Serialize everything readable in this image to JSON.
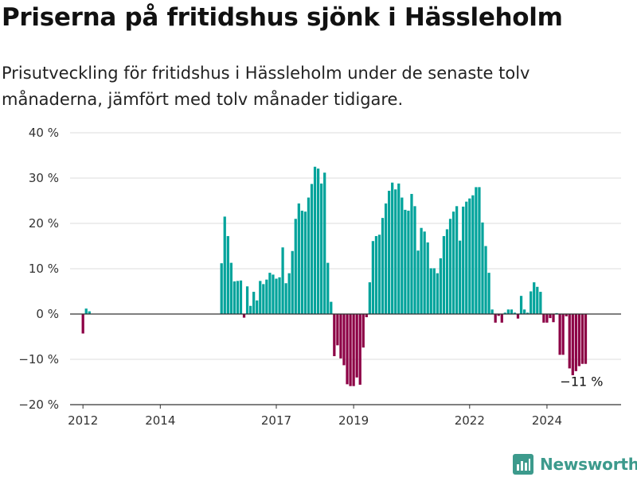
{
  "title": "Priserna på fritidshus sjönk i Hässleholm",
  "subtitle": "Prisutveckling för fritidshus i Hässleholm under de senaste tolv månaderna, jämfört med tolv månader tidigare.",
  "brand": {
    "name": "Newsworthy",
    "icon": "bar-chart-logo-icon",
    "color": "#3c9a8c"
  },
  "colors": {
    "positive": "#00a39b",
    "negative": "#8c0045",
    "grid": "#dcdcdc",
    "baseline": "#333333"
  },
  "chart_data": {
    "type": "bar",
    "x_unit": "month",
    "y_unit": "%",
    "ylim": [
      -20,
      40
    ],
    "y_ticks": [
      40,
      30,
      20,
      10,
      0,
      -10,
      -20
    ],
    "y_tick_labels": [
      "40 %",
      "30 %",
      "20 %",
      "10 %",
      "0 %",
      "−10 %",
      "−20 %"
    ],
    "x_tick_labels": [
      "2012",
      "2014",
      "2017",
      "2019",
      "2022",
      "2024"
    ],
    "x_tick_dates": [
      "2012-01",
      "2014-01",
      "2017-01",
      "2019-01",
      "2022-01",
      "2024-01"
    ],
    "x_range": [
      "2011-09",
      "2025-12"
    ],
    "grid": true,
    "annotation": {
      "text": "−11 %",
      "date": "2025-01",
      "value": -11
    },
    "series": [
      {
        "values": [
          [
            "2012-01",
            -4.3
          ],
          [
            "2012-02",
            1.2
          ],
          [
            "2012-03",
            0.6
          ],
          [
            "2015-08",
            11.2
          ],
          [
            "2015-09",
            21.5
          ],
          [
            "2015-10",
            17.2
          ],
          [
            "2015-11",
            11.3
          ],
          [
            "2015-12",
            7.2
          ],
          [
            "2016-01",
            7.3
          ],
          [
            "2016-02",
            7.4
          ],
          [
            "2016-03",
            -0.8
          ],
          [
            "2016-04",
            6.1
          ],
          [
            "2016-05",
            1.8
          ],
          [
            "2016-06",
            4.9
          ],
          [
            "2016-07",
            3.0
          ],
          [
            "2016-08",
            7.3
          ],
          [
            "2016-09",
            6.6
          ],
          [
            "2016-10",
            7.6
          ],
          [
            "2016-11",
            9.1
          ],
          [
            "2016-12",
            8.7
          ],
          [
            "2017-01",
            7.8
          ],
          [
            "2017-02",
            8.1
          ],
          [
            "2017-03",
            14.7
          ],
          [
            "2017-04",
            6.8
          ],
          [
            "2017-05",
            9.0
          ],
          [
            "2017-06",
            13.9
          ],
          [
            "2017-07",
            21.0
          ],
          [
            "2017-08",
            24.4
          ],
          [
            "2017-09",
            22.8
          ],
          [
            "2017-10",
            22.6
          ],
          [
            "2017-11",
            25.7
          ],
          [
            "2017-12",
            28.7
          ],
          [
            "2018-01",
            32.5
          ],
          [
            "2018-02",
            32.1
          ],
          [
            "2018-03",
            28.8
          ],
          [
            "2018-04",
            31.2
          ],
          [
            "2018-05",
            11.3
          ],
          [
            "2018-06",
            2.7
          ],
          [
            "2018-07",
            -9.3
          ],
          [
            "2018-08",
            -6.9
          ],
          [
            "2018-09",
            -9.8
          ],
          [
            "2018-10",
            -11.3
          ],
          [
            "2018-11",
            -15.5
          ],
          [
            "2018-12",
            -15.9
          ],
          [
            "2019-01",
            -15.9
          ],
          [
            "2019-02",
            -14.0
          ],
          [
            "2019-03",
            -15.6
          ],
          [
            "2019-04",
            -7.4
          ],
          [
            "2019-05",
            -0.7
          ],
          [
            "2019-06",
            7.0
          ],
          [
            "2019-07",
            16.1
          ],
          [
            "2019-08",
            17.2
          ],
          [
            "2019-09",
            17.5
          ],
          [
            "2019-10",
            21.2
          ],
          [
            "2019-11",
            24.4
          ],
          [
            "2019-12",
            27.2
          ],
          [
            "2020-01",
            29.0
          ],
          [
            "2020-02",
            27.5
          ],
          [
            "2020-03",
            28.8
          ],
          [
            "2020-04",
            25.7
          ],
          [
            "2020-05",
            23.0
          ],
          [
            "2020-06",
            22.8
          ],
          [
            "2020-07",
            26.5
          ],
          [
            "2020-08",
            23.8
          ],
          [
            "2020-09",
            14.0
          ],
          [
            "2020-10",
            19.0
          ],
          [
            "2020-11",
            18.2
          ],
          [
            "2020-12",
            15.8
          ],
          [
            "2021-01",
            10.1
          ],
          [
            "2021-02",
            10.1
          ],
          [
            "2021-03",
            9.0
          ],
          [
            "2021-04",
            12.3
          ],
          [
            "2021-05",
            17.2
          ],
          [
            "2021-06",
            18.7
          ],
          [
            "2021-07",
            21.0
          ],
          [
            "2021-08",
            22.6
          ],
          [
            "2021-09",
            23.8
          ],
          [
            "2021-10",
            16.2
          ],
          [
            "2021-11",
            23.7
          ],
          [
            "2021-12",
            24.8
          ],
          [
            "2022-01",
            25.5
          ],
          [
            "2022-02",
            26.2
          ],
          [
            "2022-03",
            28.0
          ],
          [
            "2022-04",
            28.0
          ],
          [
            "2022-05",
            20.2
          ],
          [
            "2022-06",
            15.0
          ],
          [
            "2022-07",
            9.1
          ],
          [
            "2022-08",
            1.0
          ],
          [
            "2022-09",
            -1.9
          ],
          [
            "2022-10",
            -0.4
          ],
          [
            "2022-11",
            -1.9
          ],
          [
            "2022-12",
            0.3
          ],
          [
            "2023-01",
            1.0
          ],
          [
            "2023-02",
            1.0
          ],
          [
            "2023-03",
            0.3
          ],
          [
            "2023-04",
            -1.0
          ],
          [
            "2023-05",
            4.0
          ],
          [
            "2023-06",
            1.0
          ],
          [
            "2023-07",
            0.3
          ],
          [
            "2023-08",
            5.0
          ],
          [
            "2023-09",
            7.0
          ],
          [
            "2023-10",
            6.0
          ],
          [
            "2023-11",
            4.9
          ],
          [
            "2023-12",
            -1.9
          ],
          [
            "2024-01",
            -1.9
          ],
          [
            "2024-02",
            -0.9
          ],
          [
            "2024-03",
            -1.8
          ],
          [
            "2024-04",
            0.2
          ],
          [
            "2024-05",
            -9.0
          ],
          [
            "2024-06",
            -9.0
          ],
          [
            "2024-07",
            -0.5
          ],
          [
            "2024-08",
            -12.0
          ],
          [
            "2024-09",
            -13.5
          ],
          [
            "2024-10",
            -12.6
          ],
          [
            "2024-11",
            -11.5
          ],
          [
            "2024-12",
            -11.0
          ],
          [
            "2025-01",
            -11.0
          ]
        ]
      }
    ]
  }
}
